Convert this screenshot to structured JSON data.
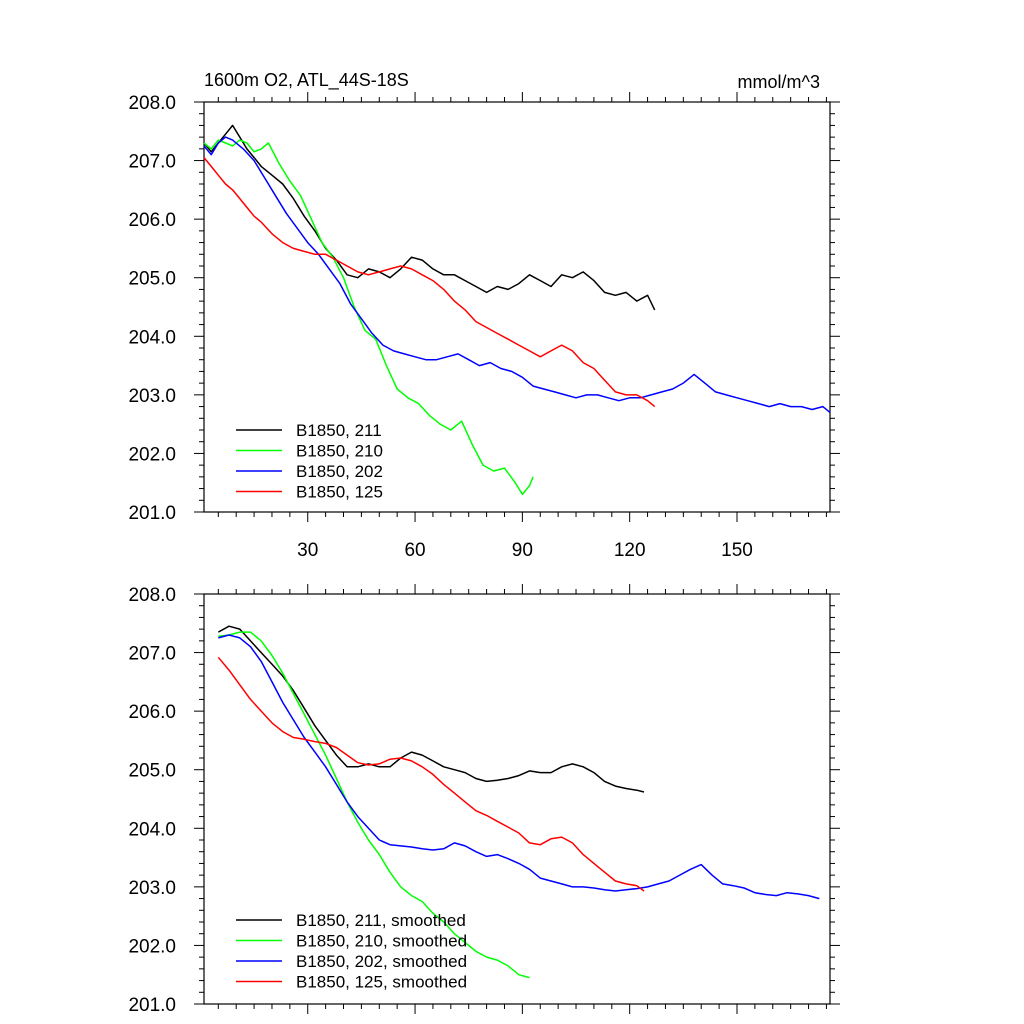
{
  "chart_data": [
    {
      "type": "line",
      "title": "1600m O2, ATL_44S-18S",
      "units_label": "mmol/m^3",
      "xlabel": "",
      "ylabel": "",
      "xlim": [
        1,
        176
      ],
      "ylim": [
        201.0,
        208.0
      ],
      "x_ticks": [
        30,
        60,
        90,
        120,
        150
      ],
      "x_tick_labels": [
        "30",
        "60",
        "90",
        "120",
        "150"
      ],
      "y_ticks": [
        201.0,
        202.0,
        203.0,
        204.0,
        205.0,
        206.0,
        207.0,
        208.0
      ],
      "y_tick_labels": [
        "201.0",
        "202.0",
        "203.0",
        "204.0",
        "205.0",
        "206.0",
        "207.0",
        "208.0"
      ],
      "legend_position": "bottom-left",
      "series": [
        {
          "name": "B1850, 211",
          "color": "#000000",
          "x": [
            1,
            3,
            5,
            7,
            9,
            11,
            13,
            15,
            17,
            20,
            23,
            26,
            29,
            32,
            35,
            38,
            41,
            44,
            47,
            50,
            53,
            56,
            59,
            62,
            65,
            68,
            71,
            74,
            77,
            80,
            83,
            86,
            89,
            92,
            95,
            98,
            101,
            104,
            107,
            110,
            113,
            116,
            119,
            122,
            125,
            127
          ],
          "values": [
            207.3,
            207.15,
            207.3,
            207.45,
            207.6,
            207.4,
            207.2,
            207.05,
            206.9,
            206.75,
            206.6,
            206.35,
            206.05,
            205.8,
            205.5,
            205.3,
            205.05,
            205.0,
            205.15,
            205.1,
            205.0,
            205.15,
            205.35,
            205.3,
            205.15,
            205.05,
            205.05,
            204.95,
            204.85,
            204.75,
            204.85,
            204.8,
            204.9,
            205.05,
            204.95,
            204.85,
            205.05,
            205.0,
            205.1,
            204.95,
            204.75,
            204.7,
            204.75,
            204.6,
            204.7,
            204.45
          ]
        },
        {
          "name": "B1850, 210",
          "color": "#00ff00",
          "x": [
            1,
            3,
            5,
            7,
            9,
            11,
            13,
            15,
            17,
            19,
            22,
            25,
            28,
            31,
            34,
            37,
            40,
            43,
            46,
            49,
            52,
            55,
            58,
            61,
            64,
            67,
            70,
            73,
            76,
            79,
            82,
            85,
            88,
            90,
            92,
            93
          ],
          "values": [
            207.3,
            207.2,
            207.35,
            207.3,
            207.25,
            207.35,
            207.3,
            207.15,
            207.2,
            207.3,
            206.95,
            206.65,
            206.4,
            206.0,
            205.6,
            205.35,
            205.0,
            204.5,
            204.1,
            203.95,
            203.5,
            203.1,
            202.95,
            202.85,
            202.65,
            202.5,
            202.4,
            202.55,
            202.15,
            201.8,
            201.7,
            201.75,
            201.5,
            201.3,
            201.45,
            201.6
          ]
        },
        {
          "name": "B1850, 202",
          "color": "#0000ff",
          "x": [
            1,
            3,
            5,
            7,
            9,
            12,
            15,
            18,
            21,
            24,
            27,
            30,
            33,
            36,
            39,
            42,
            45,
            48,
            51,
            54,
            57,
            60,
            63,
            66,
            69,
            72,
            75,
            78,
            81,
            84,
            87,
            90,
            93,
            96,
            99,
            102,
            105,
            108,
            111,
            114,
            117,
            120,
            123,
            126,
            129,
            132,
            135,
            138,
            141,
            144,
            147,
            150,
            153,
            156,
            159,
            162,
            165,
            168,
            171,
            174,
            176
          ],
          "values": [
            207.25,
            207.1,
            207.3,
            207.4,
            207.35,
            207.2,
            207.0,
            206.7,
            206.4,
            206.1,
            205.85,
            205.6,
            205.4,
            205.15,
            204.9,
            204.55,
            204.3,
            204.05,
            203.85,
            203.75,
            203.7,
            203.65,
            203.6,
            203.6,
            203.65,
            203.7,
            203.6,
            203.5,
            203.55,
            203.45,
            203.4,
            203.3,
            203.15,
            203.1,
            203.05,
            203.0,
            202.95,
            203.0,
            203.0,
            202.95,
            202.9,
            202.95,
            202.95,
            203.0,
            203.05,
            203.1,
            203.2,
            203.35,
            203.2,
            203.05,
            203.0,
            202.95,
            202.9,
            202.85,
            202.8,
            202.85,
            202.8,
            202.8,
            202.75,
            202.8,
            202.7
          ]
        },
        {
          "name": "B1850, 125",
          "color": "#ff0000",
          "x": [
            1,
            3,
            5,
            7,
            9,
            11,
            13,
            15,
            17,
            20,
            23,
            26,
            29,
            32,
            35,
            38,
            41,
            44,
            47,
            50,
            53,
            56,
            59,
            62,
            65,
            68,
            71,
            74,
            77,
            80,
            83,
            86,
            89,
            92,
            95,
            98,
            101,
            104,
            107,
            110,
            113,
            116,
            119,
            122,
            125,
            127
          ],
          "values": [
            207.05,
            206.9,
            206.75,
            206.6,
            206.5,
            206.35,
            206.2,
            206.05,
            205.95,
            205.75,
            205.6,
            205.5,
            205.45,
            205.4,
            205.4,
            205.3,
            205.2,
            205.1,
            205.05,
            205.1,
            205.15,
            205.2,
            205.15,
            205.05,
            204.95,
            204.8,
            204.6,
            204.45,
            204.25,
            204.15,
            204.05,
            203.95,
            203.85,
            203.75,
            203.65,
            203.75,
            203.85,
            203.75,
            203.55,
            203.45,
            203.25,
            203.05,
            203.0,
            203.0,
            202.9,
            202.8
          ]
        }
      ]
    },
    {
      "type": "line",
      "title": "",
      "xlabel": "",
      "ylabel": "",
      "xlim": [
        1,
        176
      ],
      "ylim": [
        201.0,
        208.0
      ],
      "x_ticks": [
        30,
        60,
        90,
        120,
        150
      ],
      "x_tick_labels": [],
      "y_ticks": [
        201.0,
        202.0,
        203.0,
        204.0,
        205.0,
        206.0,
        207.0,
        208.0
      ],
      "y_tick_labels": [
        "201.0",
        "202.0",
        "203.0",
        "204.0",
        "205.0",
        "206.0",
        "207.0",
        "208.0"
      ],
      "legend_position": "bottom-left",
      "series": [
        {
          "name": "B1850, 211, smoothed",
          "color": "#000000",
          "x": [
            5,
            8,
            11,
            14,
            17,
            20,
            23,
            26,
            29,
            32,
            35,
            38,
            41,
            44,
            47,
            50,
            53,
            56,
            59,
            62,
            65,
            68,
            71,
            74,
            77,
            80,
            83,
            86,
            89,
            92,
            95,
            98,
            101,
            104,
            107,
            110,
            113,
            116,
            119,
            122,
            124
          ],
          "values": [
            207.35,
            207.45,
            207.4,
            207.2,
            207.0,
            206.8,
            206.6,
            206.35,
            206.05,
            205.75,
            205.5,
            205.25,
            205.05,
            205.05,
            205.1,
            205.05,
            205.05,
            205.2,
            205.3,
            205.25,
            205.15,
            205.05,
            205.0,
            204.95,
            204.85,
            204.8,
            204.82,
            204.85,
            204.9,
            204.98,
            204.95,
            204.95,
            205.05,
            205.1,
            205.05,
            204.95,
            204.8,
            204.72,
            204.68,
            204.65,
            204.62
          ]
        },
        {
          "name": "B1850, 210, smoothed",
          "color": "#00ff00",
          "x": [
            5,
            8,
            11,
            14,
            17,
            20,
            23,
            26,
            29,
            32,
            35,
            38,
            41,
            44,
            47,
            50,
            53,
            56,
            59,
            62,
            65,
            68,
            71,
            74,
            77,
            80,
            83,
            86,
            89,
            92
          ],
          "values": [
            207.28,
            207.3,
            207.35,
            207.35,
            207.2,
            206.95,
            206.65,
            206.3,
            205.95,
            205.6,
            205.25,
            204.85,
            204.45,
            204.1,
            203.8,
            203.55,
            203.25,
            203.0,
            202.85,
            202.75,
            202.55,
            202.4,
            202.2,
            202.05,
            201.9,
            201.8,
            201.75,
            201.65,
            201.5,
            201.45
          ]
        },
        {
          "name": "B1850, 202, smoothed",
          "color": "#0000ff",
          "x": [
            5,
            8,
            11,
            14,
            17,
            20,
            23,
            26,
            29,
            32,
            35,
            38,
            41,
            44,
            47,
            50,
            53,
            56,
            59,
            62,
            65,
            68,
            71,
            74,
            77,
            80,
            83,
            86,
            89,
            92,
            95,
            98,
            101,
            104,
            107,
            110,
            113,
            116,
            119,
            122,
            125,
            128,
            131,
            134,
            137,
            140,
            143,
            146,
            149,
            152,
            155,
            158,
            161,
            164,
            167,
            170,
            173
          ],
          "values": [
            207.25,
            207.3,
            207.25,
            207.1,
            206.85,
            206.5,
            206.15,
            205.85,
            205.55,
            205.3,
            205.05,
            204.75,
            204.45,
            204.2,
            204.0,
            203.8,
            203.72,
            203.7,
            203.68,
            203.65,
            203.63,
            203.65,
            203.75,
            203.7,
            203.6,
            203.52,
            203.55,
            203.48,
            203.4,
            203.3,
            203.15,
            203.1,
            203.05,
            203.0,
            203.0,
            202.98,
            202.95,
            202.93,
            202.95,
            202.97,
            203.0,
            203.05,
            203.1,
            203.2,
            203.3,
            203.38,
            203.2,
            203.05,
            203.02,
            202.98,
            202.9,
            202.87,
            202.85,
            202.9,
            202.88,
            202.85,
            202.8
          ]
        },
        {
          "name": "B1850, 125, smoothed",
          "color": "#ff0000",
          "x": [
            5,
            8,
            11,
            14,
            17,
            20,
            23,
            26,
            29,
            32,
            35,
            38,
            41,
            44,
            47,
            50,
            53,
            56,
            59,
            62,
            65,
            68,
            71,
            74,
            77,
            80,
            83,
            86,
            89,
            92,
            95,
            98,
            101,
            104,
            107,
            110,
            113,
            116,
            119,
            122,
            124
          ],
          "values": [
            206.92,
            206.7,
            206.45,
            206.2,
            206.0,
            205.8,
            205.65,
            205.55,
            205.52,
            205.48,
            205.45,
            205.38,
            205.25,
            205.12,
            205.08,
            205.1,
            205.18,
            205.2,
            205.15,
            205.05,
            204.92,
            204.75,
            204.6,
            204.45,
            204.3,
            204.22,
            204.12,
            204.02,
            203.92,
            203.75,
            203.72,
            203.82,
            203.85,
            203.75,
            203.55,
            203.4,
            203.25,
            203.1,
            203.05,
            203.02,
            202.93
          ]
        }
      ]
    }
  ]
}
